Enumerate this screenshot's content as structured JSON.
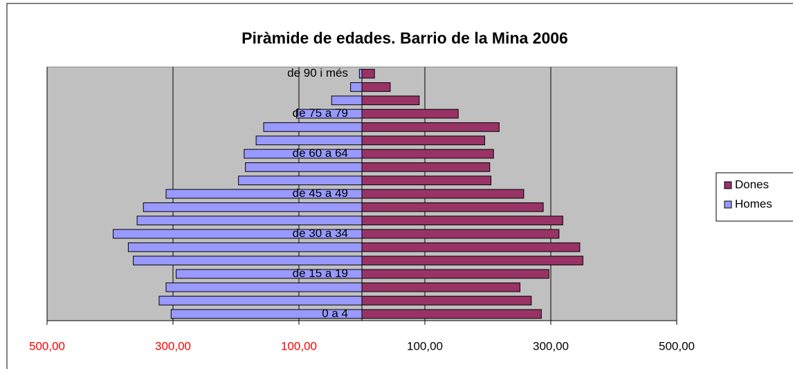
{
  "chart_data": {
    "type": "pyramid",
    "title": "Piràmide de edades. Barrio de la Mina 2006",
    "categories": [
      "0 a 4",
      null,
      null,
      "de 15 a 19",
      null,
      null,
      "de 30 a 34",
      null,
      null,
      "de 45 a 49",
      null,
      null,
      "de 60 a 64",
      null,
      null,
      "de 75 a 79",
      null,
      null,
      "de 90 i més"
    ],
    "series": [
      {
        "name": "Dones",
        "color": "#993366",
        "values": [
          285,
          269,
          251,
          297,
          351,
          346,
          313,
          319,
          288,
          257,
          205,
          203,
          209,
          195,
          218,
          153,
          91,
          45,
          20
        ]
      },
      {
        "name": "Homes",
        "color": "#9999ff",
        "values": [
          -303,
          -322,
          -311,
          -295,
          -363,
          -371,
          -395,
          -357,
          -347,
          -311,
          -196,
          -185,
          -187,
          -168,
          -156,
          -104,
          -48,
          -18,
          -4
        ]
      }
    ],
    "xlim": [
      -500,
      500
    ],
    "xticks": [
      {
        "value": -500,
        "label": "500,00"
      },
      {
        "value": -300,
        "label": "300,00"
      },
      {
        "value": -100,
        "label": "100,00"
      },
      {
        "value": 100,
        "label": "100,00"
      },
      {
        "value": 300,
        "label": "300,00"
      },
      {
        "value": 500,
        "label": "500,00"
      }
    ],
    "negative_tick_color": "#ff0000",
    "grid": true,
    "plot_background": "#c0c0c0",
    "legend": "right"
  }
}
